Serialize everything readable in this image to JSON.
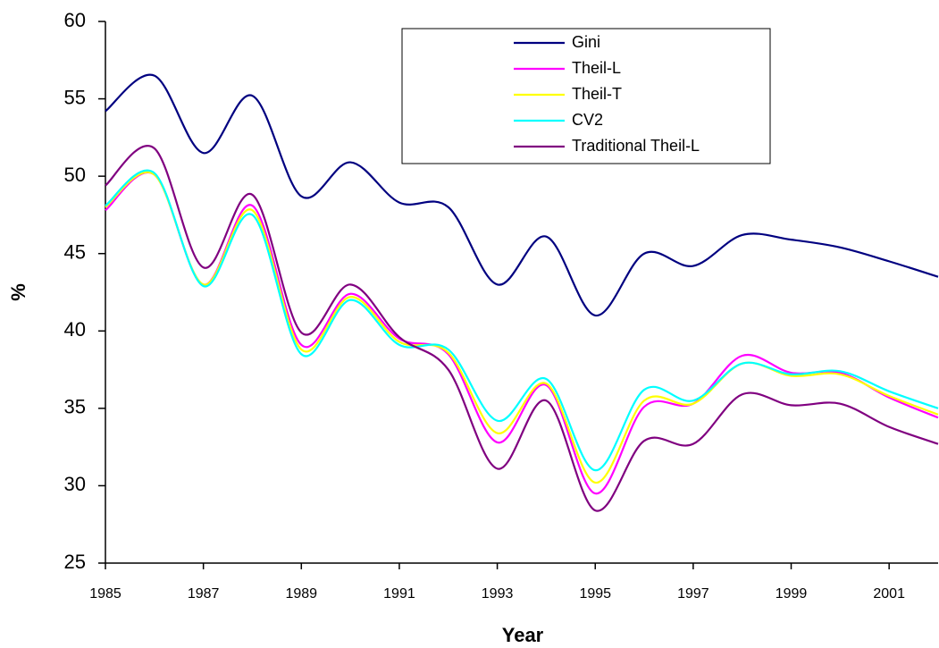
{
  "chart_data": {
    "type": "line",
    "x_label": "Year",
    "y_label": "%",
    "x": [
      1985,
      1986,
      1987,
      1988,
      1989,
      1990,
      1991,
      1992,
      1993,
      1994,
      1995,
      1996,
      1997,
      1998,
      1999,
      2000,
      2001,
      2002
    ],
    "xlim": [
      1985,
      2002
    ],
    "xticks": [
      1985,
      1987,
      1989,
      1991,
      1993,
      1995,
      1997,
      1999,
      2001
    ],
    "ylim": [
      25,
      60
    ],
    "yticks": [
      25,
      30,
      35,
      40,
      45,
      50,
      55,
      60
    ],
    "grid": false,
    "legend": "upper right",
    "series": [
      {
        "name": "Gini",
        "color": "#000080",
        "values": [
          54.2,
          56.5,
          51.5,
          55.2,
          48.7,
          50.9,
          48.3,
          48.0,
          43.0,
          46.1,
          41.0,
          45.0,
          44.2,
          46.2,
          45.9,
          45.4,
          44.5,
          43.5
        ]
      },
      {
        "name": "Theil-L",
        "color": "#ff00ff",
        "values": [
          47.8,
          50.1,
          43.0,
          48.1,
          39.1,
          42.4,
          39.5,
          38.5,
          32.8,
          36.5,
          29.5,
          35.1,
          35.3,
          38.4,
          37.3,
          37.3,
          35.7,
          34.4
        ]
      },
      {
        "name": "Theil-T",
        "color": "#ffff00",
        "values": [
          48.0,
          50.1,
          43.0,
          47.8,
          38.8,
          42.2,
          39.3,
          38.6,
          33.4,
          36.6,
          30.2,
          35.5,
          35.3,
          37.9,
          37.1,
          37.2,
          35.8,
          34.6
        ]
      },
      {
        "name": "CV2",
        "color": "#00ffff",
        "values": [
          48.1,
          50.2,
          42.9,
          47.5,
          38.5,
          42.0,
          39.1,
          38.8,
          34.2,
          36.9,
          31.0,
          36.2,
          35.5,
          37.9,
          37.2,
          37.4,
          36.1,
          35.0
        ]
      },
      {
        "name": "Traditional Theil-L",
        "color": "#800080",
        "values": [
          49.4,
          51.8,
          44.1,
          48.8,
          39.9,
          43.0,
          39.6,
          37.5,
          31.1,
          35.5,
          28.4,
          32.9,
          32.7,
          35.9,
          35.2,
          35.3,
          33.8,
          32.7
        ]
      }
    ]
  }
}
